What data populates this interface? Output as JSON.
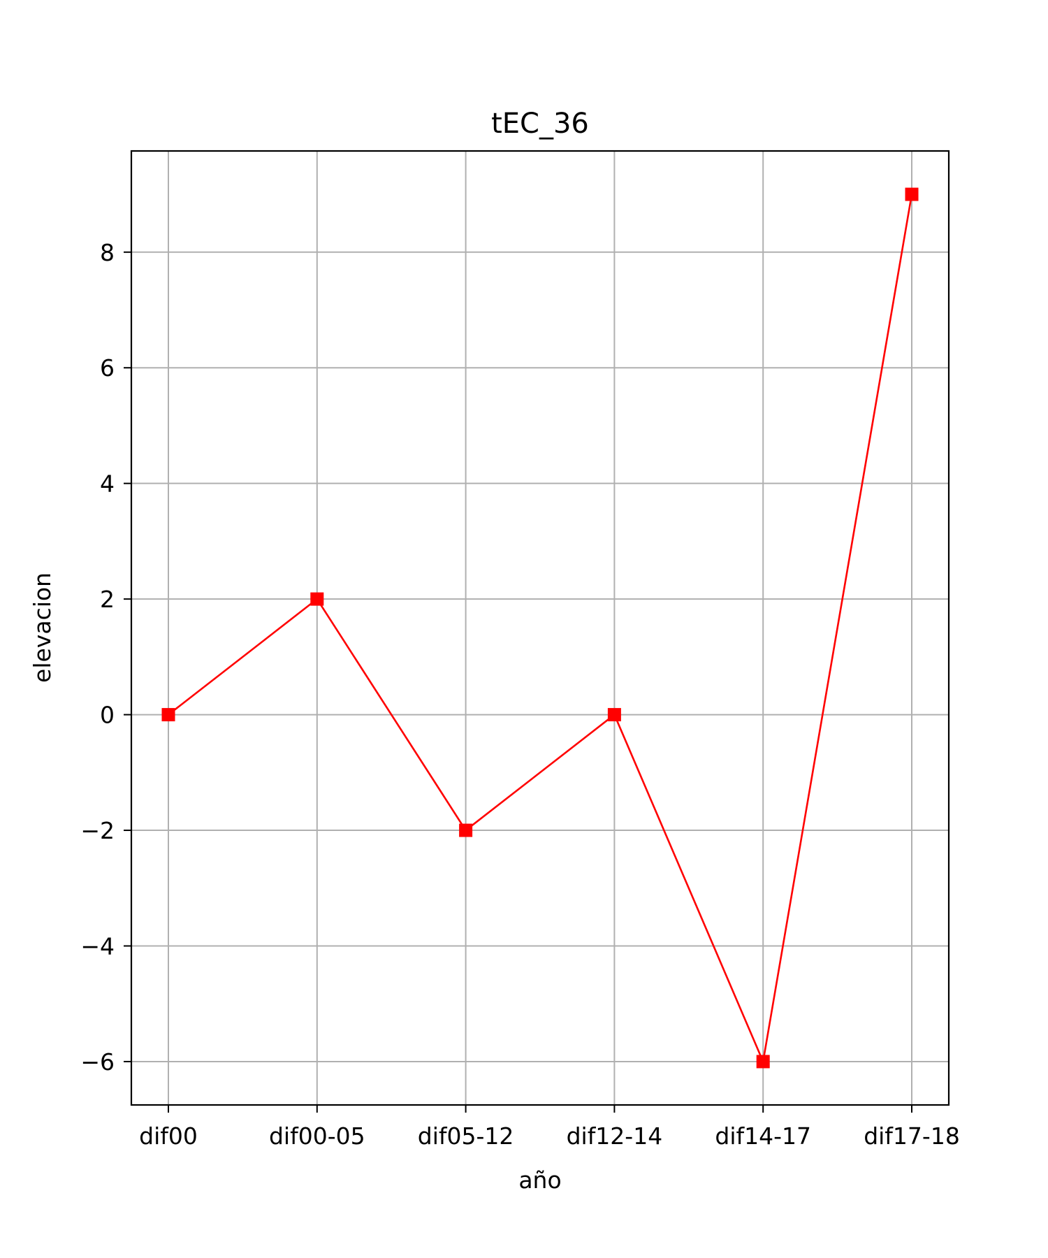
{
  "chart_data": {
    "type": "line",
    "title": "tEC_36",
    "xlabel": "año",
    "ylabel": "elevacion",
    "categories": [
      "dif00",
      "dif00-05",
      "dif05-12",
      "dif12-14",
      "dif14-17",
      "dif17-18"
    ],
    "series": [
      {
        "values": [
          0,
          2,
          -2,
          0,
          -6,
          9
        ],
        "color": "#ff0000",
        "marker": "square"
      }
    ],
    "yticks": [
      -6,
      -4,
      -2,
      0,
      2,
      4,
      6,
      8
    ],
    "ytick_labels": [
      "−6",
      "−4",
      "−2",
      "0",
      "2",
      "4",
      "6",
      "8"
    ],
    "ylim": [
      -6.75,
      9.75
    ],
    "grid": true,
    "legend": false
  }
}
